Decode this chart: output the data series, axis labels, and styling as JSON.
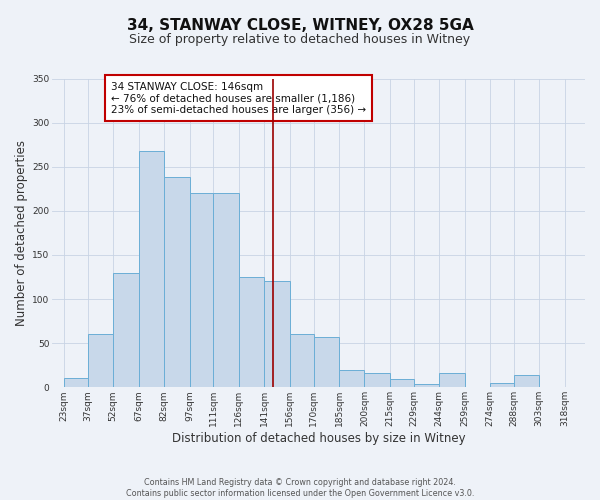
{
  "title": "34, STANWAY CLOSE, WITNEY, OX28 5GA",
  "subtitle": "Size of property relative to detached houses in Witney",
  "xlabel": "Distribution of detached houses by size in Witney",
  "ylabel": "Number of detached properties",
  "footnote1": "Contains HM Land Registry data © Crown copyright and database right 2024.",
  "footnote2": "Contains public sector information licensed under the Open Government Licence v3.0.",
  "bar_left_edges": [
    23,
    37,
    52,
    67,
    82,
    97,
    111,
    126,
    141,
    156,
    170,
    185,
    200,
    215,
    229,
    244,
    259,
    274,
    288,
    303
  ],
  "bar_heights": [
    10,
    60,
    130,
    268,
    238,
    220,
    220,
    125,
    120,
    60,
    57,
    20,
    16,
    9,
    4,
    16,
    0,
    5,
    14,
    0
  ],
  "bar_widths": [
    14,
    15,
    15,
    15,
    15,
    14,
    15,
    15,
    15,
    14,
    15,
    15,
    15,
    14,
    15,
    15,
    15,
    14,
    15,
    15
  ],
  "xtick_labels": [
    "23sqm",
    "37sqm",
    "52sqm",
    "67sqm",
    "82sqm",
    "97sqm",
    "111sqm",
    "126sqm",
    "141sqm",
    "156sqm",
    "170sqm",
    "185sqm",
    "200sqm",
    "215sqm",
    "229sqm",
    "244sqm",
    "259sqm",
    "274sqm",
    "288sqm",
    "303sqm",
    "318sqm"
  ],
  "xtick_positions": [
    23,
    37,
    52,
    67,
    82,
    97,
    111,
    126,
    141,
    156,
    170,
    185,
    200,
    215,
    229,
    244,
    259,
    274,
    288,
    303,
    318
  ],
  "ylim": [
    0,
    350
  ],
  "xlim": [
    16,
    330
  ],
  "bar_color": "#c8d8ea",
  "bar_edge_color": "#6baed6",
  "vline_x": 146,
  "vline_color": "#9b0000",
  "annotation_title": "34 STANWAY CLOSE: 146sqm",
  "annotation_line1": "← 76% of detached houses are smaller (1,186)",
  "annotation_line2": "23% of semi-detached houses are larger (356) →",
  "annotation_box_edge": "#c00000",
  "grid_color": "#c8d4e4",
  "background_color": "#eef2f8",
  "title_fontsize": 11,
  "subtitle_fontsize": 9,
  "axis_label_fontsize": 8.5,
  "tick_fontsize": 6.5,
  "annotation_fontsize": 7.5,
  "yticks": [
    0,
    50,
    100,
    150,
    200,
    250,
    300,
    350
  ]
}
